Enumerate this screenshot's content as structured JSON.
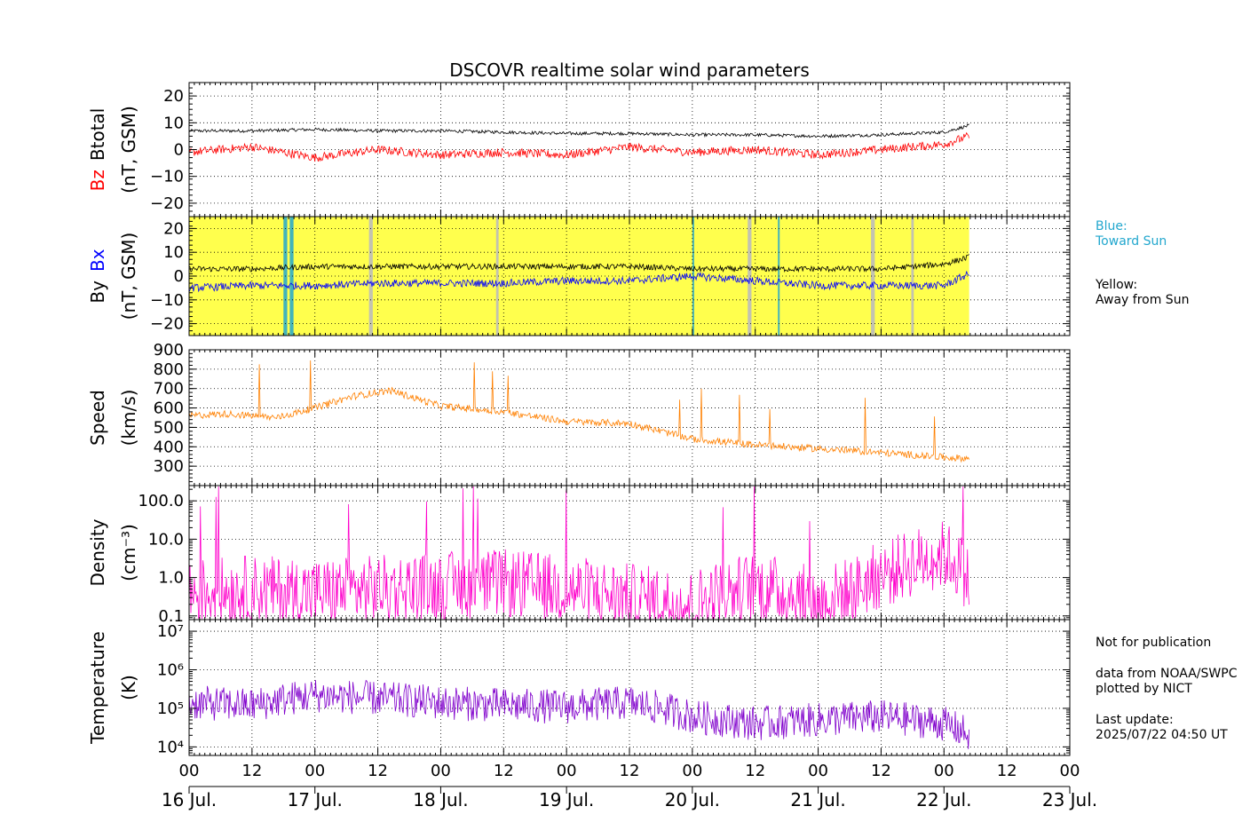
{
  "chart_data": [
    {
      "type": "line",
      "title": "DSCOVR realtime solar wind parameters",
      "ylabel_parts": [
        "Bz",
        "Btotal",
        "(nT, GSM)"
      ],
      "ylim": [
        -25,
        25
      ],
      "ticks": [
        20,
        10,
        0,
        -10,
        -20
      ],
      "tick_labels": [
        "20",
        "10",
        "0",
        "−10",
        "−20"
      ],
      "grid": true,
      "series": [
        {
          "name": "Btotal",
          "color": "#000000",
          "time_days": [
            0,
            0.5,
            1,
            1.5,
            2,
            2.5,
            3,
            3.5,
            4,
            4.5,
            5,
            5.5,
            6,
            6.2
          ],
          "values": [
            7,
            7,
            7.5,
            7,
            7,
            6.5,
            6,
            6,
            5.5,
            5.5,
            5,
            5.5,
            6.5,
            9
          ]
        },
        {
          "name": "Bz",
          "color": "#ff0000",
          "time_days": [
            0,
            0.5,
            1,
            1.5,
            2,
            2.5,
            3,
            3.5,
            4,
            4.5,
            5,
            5.5,
            6,
            6.2
          ],
          "values": [
            -1,
            1,
            -3,
            0,
            -2,
            -1,
            -2,
            1,
            -1,
            0,
            -2,
            0,
            2,
            5
          ]
        }
      ]
    },
    {
      "type": "line",
      "ylabel_parts": [
        "By",
        "Bx",
        "(nT, GSM)"
      ],
      "ylim": [
        -25,
        25
      ],
      "ticks": [
        20,
        10,
        0,
        -10,
        -20
      ],
      "tick_labels": [
        "20",
        "10",
        "0",
        "−10",
        "−20"
      ],
      "grid": true,
      "background": {
        "away_color": "#ffff4d",
        "toward_color": "#22a7ce",
        "gap_color": "#bcbcbc",
        "data_end_day": 6.2,
        "toward_intervals_days": [
          [
            0.75,
            0.78
          ],
          [
            0.8,
            0.83
          ],
          [
            4,
            4.01
          ],
          [
            4.68,
            4.69
          ]
        ],
        "gap_intervals_days": [
          [
            1.43,
            1.46
          ],
          [
            2.44,
            2.46
          ],
          [
            4.44,
            4.47
          ],
          [
            5.42,
            5.45
          ],
          [
            5.74,
            5.76
          ]
        ]
      },
      "series": [
        {
          "name": "By",
          "color": "#000000",
          "time_days": [
            0,
            0.5,
            1,
            1.5,
            2,
            2.5,
            3,
            3.5,
            4,
            4.5,
            5,
            5.5,
            6,
            6.2
          ],
          "values": [
            3,
            3,
            4,
            4,
            4,
            4,
            4,
            4,
            3,
            3,
            3,
            3,
            5,
            8
          ]
        },
        {
          "name": "Bx",
          "color": "#0000ff",
          "time_days": [
            0,
            0.5,
            1,
            1.5,
            2,
            2.5,
            3,
            3.5,
            4,
            4.5,
            5,
            5.5,
            6,
            6.2
          ],
          "values": [
            -5,
            -4,
            -4,
            -3,
            -3,
            -3,
            -2,
            -2,
            0,
            -2,
            -4,
            -4,
            -4,
            1
          ]
        }
      ]
    },
    {
      "type": "line",
      "ylabel_parts": [
        "Speed",
        "(km/s)"
      ],
      "ylim": [
        200,
        900
      ],
      "ticks": [
        900,
        800,
        700,
        600,
        500,
        400,
        300
      ],
      "tick_labels": [
        "900",
        "800",
        "700",
        "600",
        "500",
        "400",
        "300"
      ],
      "grid": true,
      "series": [
        {
          "name": "Speed",
          "color": "#ff8000",
          "time_days": [
            0,
            0.3,
            0.7,
            1,
            1.3,
            1.6,
            2,
            2.5,
            3,
            3.5,
            4,
            4.5,
            5,
            5.5,
            6,
            6.2
          ],
          "values": [
            560,
            570,
            550,
            600,
            660,
            690,
            610,
            580,
            530,
            520,
            440,
            410,
            390,
            370,
            345,
            340
          ]
        }
      ]
    },
    {
      "type": "line",
      "ylabel_parts": [
        "Density",
        "(cm⁻³)"
      ],
      "log_scale": true,
      "ylim": [
        0.08,
        250
      ],
      "ticks": [
        100,
        10,
        1,
        0.1
      ],
      "tick_labels": [
        "100.0",
        "10.0",
        "1.0",
        "0.1"
      ],
      "grid": true,
      "series": [
        {
          "name": "Density",
          "color": "#ff00cc",
          "time_days": [
            0,
            0.5,
            1,
            1.5,
            2,
            2.5,
            3,
            3.5,
            4,
            4.5,
            5,
            5.3,
            5.6,
            6,
            6.2
          ],
          "values": [
            0.4,
            0.5,
            0.4,
            0.5,
            0.6,
            0.7,
            0.5,
            0.3,
            0.2,
            0.6,
            0.2,
            0.5,
            1.5,
            4,
            0.7
          ]
        }
      ]
    },
    {
      "type": "line",
      "ylabel_parts": [
        "Temperature",
        "(K)"
      ],
      "log_scale": true,
      "ylim": [
        6000,
        20000000
      ],
      "ticks": [
        10000000,
        1000000,
        100000,
        10000
      ],
      "tick_labels": [
        "10⁷",
        "10⁶",
        "10⁵",
        "10⁴"
      ],
      "grid": true,
      "series": [
        {
          "name": "Temperature",
          "color": "#8000cc",
          "time_days": [
            0,
            0.5,
            1,
            1.5,
            2,
            2.5,
            3,
            3.5,
            4,
            4.5,
            5,
            5.5,
            6,
            6.2
          ],
          "values": [
            140000,
            120000,
            220000,
            180000,
            140000,
            120000,
            110000,
            140000,
            60000,
            40000,
            50000,
            60000,
            40000,
            20000
          ]
        }
      ]
    }
  ],
  "x_axis": {
    "hour_labels": [
      "00",
      "12",
      "00",
      "12",
      "00",
      "12",
      "00",
      "12",
      "00",
      "12",
      "00",
      "12",
      "00",
      "12",
      "00"
    ],
    "date_labels": [
      "16 Jul.",
      "17 Jul.",
      "18 Jul.",
      "19 Jul.",
      "20 Jul.",
      "21 Jul.",
      "22 Jul.",
      "23 Jul."
    ]
  },
  "legend": {
    "blue": {
      "title": "Blue:",
      "text": "Toward Sun",
      "color": "#22a7ce"
    },
    "yellow": {
      "title": "Yellow:",
      "text": "Away from Sun",
      "color": "#000000"
    }
  },
  "notes": {
    "line1": "Not for publication",
    "line2": "data from NOAA/SWPC",
    "line3": "plotted by NICT",
    "line4": "Last update:",
    "line5": "2025/07/22 04:50 UT"
  }
}
